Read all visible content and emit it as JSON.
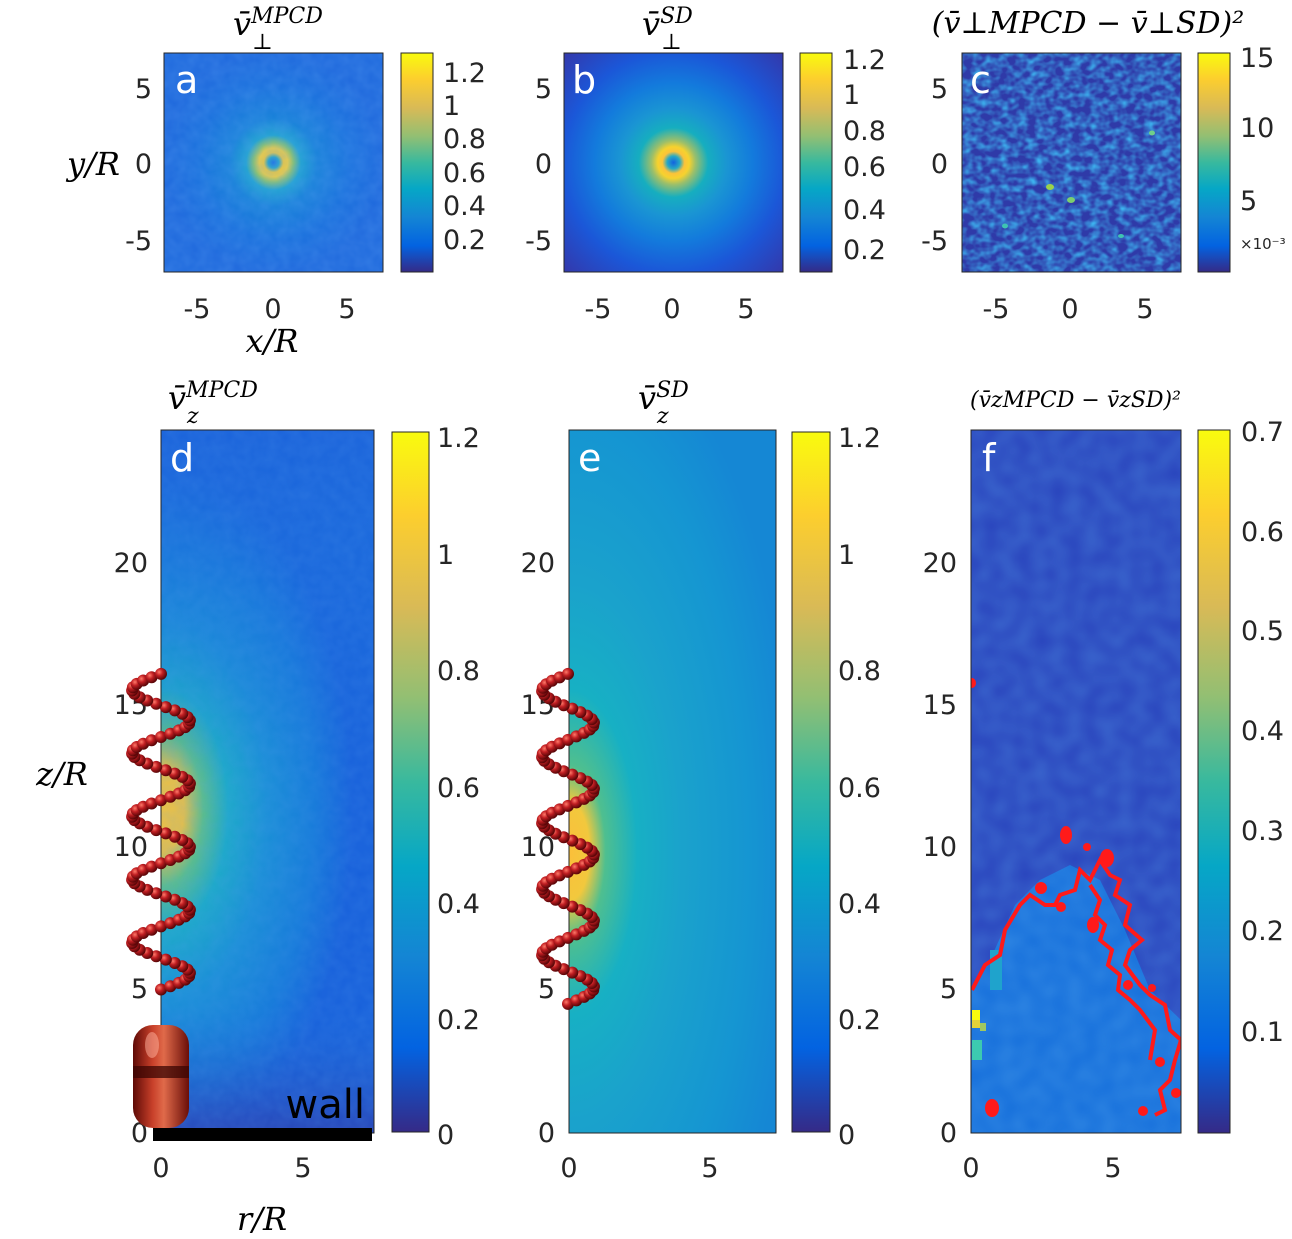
{
  "chart_data": [
    {
      "id": "a",
      "type": "heatmap",
      "panel_label": "a",
      "title_base": "v̄",
      "title_sub": "⊥",
      "title_sup": "MPCD",
      "xlabel": "x/R",
      "ylabel": "y/R",
      "xlim": [
        -7.5,
        7.5
      ],
      "ylim": [
        -7.5,
        7.5
      ],
      "xticks": [
        "-5",
        "0",
        "5"
      ],
      "yticks": [
        "5",
        "0",
        "-5"
      ],
      "colorbar": {
        "ticks": [
          "1.2",
          "1",
          "0.8",
          "0.6",
          "0.4",
          "0.2"
        ],
        "range": [
          0.05,
          1.3
        ]
      },
      "field": "ring peak ~1.2 at r≈1, noisy background ~0.2"
    },
    {
      "id": "b",
      "type": "heatmap",
      "panel_label": "b",
      "title_base": "v̄",
      "title_sub": "⊥",
      "title_sup": "SD",
      "xlim": [
        -7.5,
        7.5
      ],
      "ylim": [
        -7.5,
        7.5
      ],
      "xticks": [
        "-5",
        "0",
        "5"
      ],
      "yticks": [
        "5",
        "0",
        "-5"
      ],
      "colorbar": {
        "ticks": [
          "1.2",
          "1",
          "0.8",
          "0.6",
          "0.4",
          "0.2"
        ],
        "range": [
          0.1,
          1.25
        ]
      },
      "field": "smooth ring peak ~1.2 at r≈1, decaying to ~0.1"
    },
    {
      "id": "c",
      "type": "heatmap",
      "panel_label": "c",
      "title_text": "(v̄⊥MPCD − v̄⊥SD)²",
      "xlim": [
        -7.5,
        7.5
      ],
      "ylim": [
        -7.5,
        7.5
      ],
      "xticks": [
        "-5",
        "0",
        "5"
      ],
      "yticks": [
        "5",
        "0",
        "-5"
      ],
      "colorbar": {
        "ticks": [
          "15",
          "10",
          "5"
        ],
        "exponent": "×10⁻³",
        "range": [
          0,
          15
        ]
      },
      "field": "noisy, mostly 0–5×10⁻³"
    },
    {
      "id": "d",
      "type": "heatmap",
      "panel_label": "d",
      "title_base": "v̄",
      "title_sub": "z",
      "title_sup": "MPCD",
      "xlabel": "r/R",
      "ylabel": "z/R",
      "xlim": [
        0,
        7.5
      ],
      "ylim": [
        0,
        24.5
      ],
      "xticks": [
        "0",
        "5"
      ],
      "yticks": [
        "20",
        "15",
        "10",
        "5",
        "0"
      ],
      "colorbar": {
        "ticks": [
          "1.2",
          "1",
          "0.8",
          "0.6",
          "0.4",
          "0.2",
          "0"
        ],
        "range": [
          0,
          1.2
        ]
      },
      "annotation": "wall",
      "helix": {
        "z_start": 5,
        "z_end": 16,
        "turns": 5
      }
    },
    {
      "id": "e",
      "type": "heatmap",
      "panel_label": "e",
      "title_base": "v̄",
      "title_sub": "z",
      "title_sup": "SD",
      "xlim": [
        0,
        7.5
      ],
      "ylim": [
        0,
        24.5
      ],
      "xticks": [
        "0",
        "5"
      ],
      "yticks": [
        "20",
        "15",
        "10",
        "5",
        "0"
      ],
      "colorbar": {
        "ticks": [
          "1.2",
          "1",
          "0.8",
          "0.6",
          "0.4",
          "0.2",
          "0"
        ],
        "range": [
          0,
          1.2
        ]
      },
      "helix": {
        "z_start": 4.5,
        "z_end": 16,
        "turns": 5
      }
    },
    {
      "id": "f",
      "type": "heatmap",
      "panel_label": "f",
      "title_text": "(v̄zMPCD − v̄zSD)²",
      "xlim": [
        0,
        7.5
      ],
      "ylim": [
        0,
        24.5
      ],
      "xticks": [
        "0",
        "5"
      ],
      "yticks": [
        "20",
        "15",
        "10",
        "5",
        "0"
      ],
      "colorbar": {
        "ticks": [
          "0.7",
          "0.6",
          "0.5",
          "0.4",
          "0.3",
          "0.2",
          "0.1"
        ],
        "range": [
          0,
          0.72
        ]
      },
      "contour_color": "#ff1a1a"
    }
  ],
  "colors": {
    "parula_low": "#352a87",
    "parula_mid": "#1fb2c6",
    "parula_high": "#f9fb0e",
    "helix": "#b3161b"
  }
}
